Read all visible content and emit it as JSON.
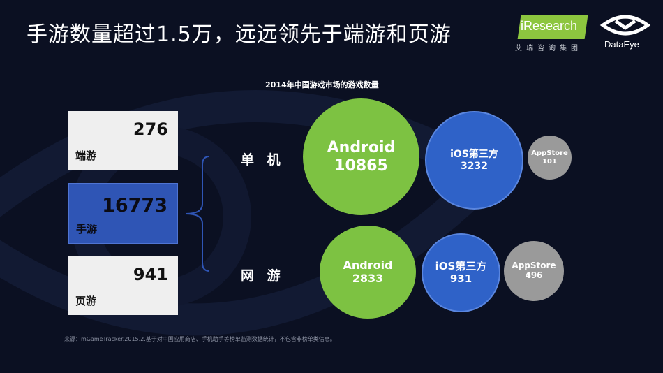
{
  "slide": {
    "title": "手游数量超过1.5万，远远领先于端游和页游",
    "chart_title": "2014年中国游戏市场的游戏数量",
    "source": "来源：mGameTracker.2015.2.基于对中国应用商店、手机助手等榜单监测数据统计，不包含非榜单类信息。"
  },
  "logos": {
    "iresearch": {
      "name": "iResearch",
      "sub": "艾瑞咨询集团"
    },
    "dataeye": {
      "name": "DataEye"
    }
  },
  "categories": [
    {
      "label": "端游",
      "value": "276",
      "color": "#efefef"
    },
    {
      "label": "手游",
      "value": "16773",
      "color": "#2f55b5"
    },
    {
      "label": "页游",
      "value": "941",
      "color": "#efefef"
    }
  ],
  "mobile_breakdown": {
    "rows": [
      {
        "label": "单 机",
        "bubbles": [
          {
            "platform": "Android",
            "value": "10865",
            "color": "#7dc242"
          },
          {
            "platform": "iOS第三方",
            "value": "3232",
            "color": "#2f62c8"
          },
          {
            "platform": "AppStore",
            "value": "101",
            "color": "#9a9a9a"
          }
        ]
      },
      {
        "label": "网 游",
        "bubbles": [
          {
            "platform": "Android",
            "value": "2833",
            "color": "#7dc242"
          },
          {
            "platform": "iOS第三方",
            "value": "931",
            "color": "#2f62c8"
          },
          {
            "platform": "AppStore",
            "value": "496",
            "color": "#9a9a9a"
          }
        ]
      }
    ]
  }
}
